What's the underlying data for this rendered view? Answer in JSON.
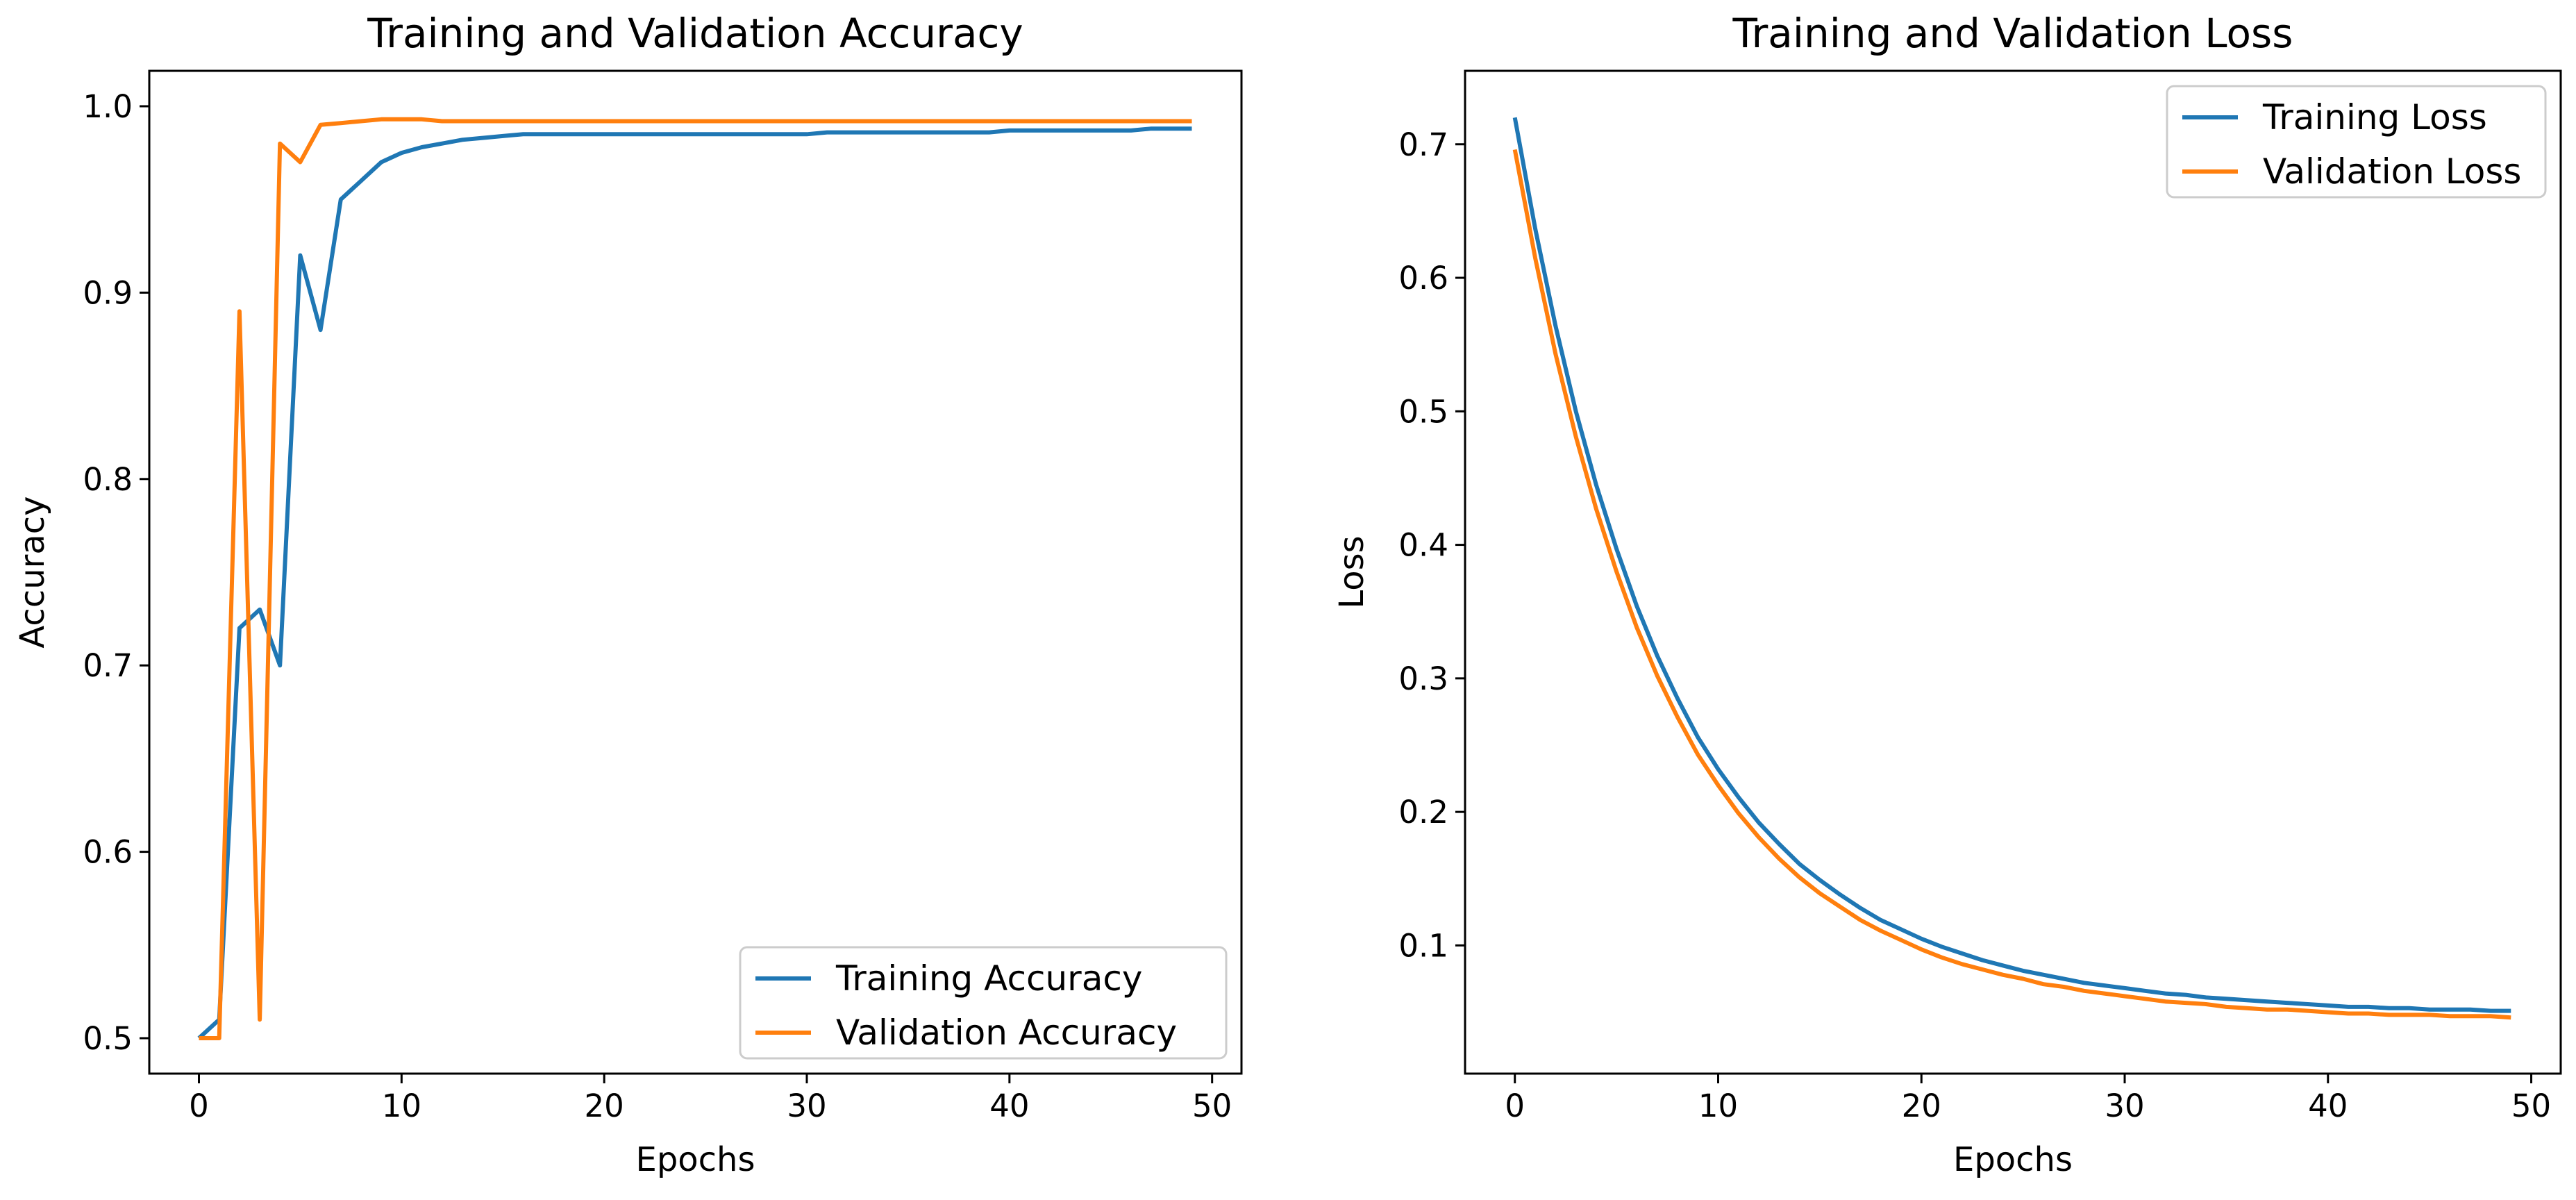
{
  "figure": {
    "colors": {
      "training": "#1f77b4",
      "validation": "#ff7f0e",
      "axes": "#000000",
      "legend_border": "#cccccc"
    }
  },
  "chart_data": [
    {
      "type": "line",
      "title": "Training and Validation Accuracy",
      "xlabel": "Epochs",
      "ylabel": "Accuracy",
      "xlim": [
        -2.45,
        51.45
      ],
      "ylim": [
        0.481,
        1.019
      ],
      "xticks": [
        0,
        10,
        20,
        30,
        40,
        50
      ],
      "xtick_labels": [
        "0",
        "10",
        "20",
        "30",
        "40",
        "50"
      ],
      "yticks": [
        0.5,
        0.6,
        0.7,
        0.8,
        0.9,
        1.0
      ],
      "ytick_labels": [
        "0.5",
        "0.6",
        "0.7",
        "0.8",
        "0.9",
        "1.0"
      ],
      "grid": false,
      "legend_position": "lower-right",
      "x": [
        0,
        1,
        2,
        3,
        4,
        5,
        6,
        7,
        8,
        9,
        10,
        11,
        12,
        13,
        14,
        15,
        16,
        17,
        18,
        19,
        20,
        21,
        22,
        23,
        24,
        25,
        26,
        27,
        28,
        29,
        30,
        31,
        32,
        33,
        34,
        35,
        36,
        37,
        38,
        39,
        40,
        41,
        42,
        43,
        44,
        45,
        46,
        47,
        48,
        49
      ],
      "series": [
        {
          "name": "Training Accuracy",
          "color": "#1f77b4",
          "values": [
            0.5,
            0.51,
            0.72,
            0.73,
            0.7,
            0.92,
            0.88,
            0.95,
            0.96,
            0.97,
            0.975,
            0.978,
            0.98,
            0.982,
            0.983,
            0.984,
            0.985,
            0.985,
            0.985,
            0.985,
            0.985,
            0.985,
            0.985,
            0.985,
            0.985,
            0.985,
            0.985,
            0.985,
            0.985,
            0.985,
            0.985,
            0.986,
            0.986,
            0.986,
            0.986,
            0.986,
            0.986,
            0.986,
            0.986,
            0.986,
            0.987,
            0.987,
            0.987,
            0.987,
            0.987,
            0.987,
            0.987,
            0.988,
            0.988,
            0.988
          ]
        },
        {
          "name": "Validation Accuracy",
          "color": "#ff7f0e",
          "values": [
            0.5,
            0.5,
            0.89,
            0.51,
            0.98,
            0.97,
            0.99,
            0.991,
            0.992,
            0.993,
            0.993,
            0.993,
            0.992,
            0.992,
            0.992,
            0.992,
            0.992,
            0.992,
            0.992,
            0.992,
            0.992,
            0.992,
            0.992,
            0.992,
            0.992,
            0.992,
            0.992,
            0.992,
            0.992,
            0.992,
            0.992,
            0.992,
            0.992,
            0.992,
            0.992,
            0.992,
            0.992,
            0.992,
            0.992,
            0.992,
            0.992,
            0.992,
            0.992,
            0.992,
            0.992,
            0.992,
            0.992,
            0.992,
            0.992,
            0.992
          ]
        }
      ]
    },
    {
      "type": "line",
      "title": "Training and Validation Loss",
      "xlabel": "Epochs",
      "ylabel": "Loss",
      "xlim": [
        -2.45,
        51.45
      ],
      "ylim": [
        0.004,
        0.755
      ],
      "xticks": [
        0,
        10,
        20,
        30,
        40,
        50
      ],
      "xtick_labels": [
        "0",
        "10",
        "20",
        "30",
        "40",
        "50"
      ],
      "yticks": [
        0.1,
        0.2,
        0.3,
        0.4,
        0.5,
        0.6,
        0.7
      ],
      "ytick_labels": [
        "0.1",
        "0.2",
        "0.3",
        "0.4",
        "0.5",
        "0.6",
        "0.7"
      ],
      "grid": false,
      "legend_position": "upper-right",
      "x": [
        0,
        1,
        2,
        3,
        4,
        5,
        6,
        7,
        8,
        9,
        10,
        11,
        12,
        13,
        14,
        15,
        16,
        17,
        18,
        19,
        20,
        21,
        22,
        23,
        24,
        25,
        26,
        27,
        28,
        29,
        30,
        31,
        32,
        33,
        34,
        35,
        36,
        37,
        38,
        39,
        40,
        41,
        42,
        43,
        44,
        45,
        46,
        47,
        48,
        49
      ],
      "series": [
        {
          "name": "Training Loss",
          "color": "#1f77b4",
          "values": [
            0.72,
            0.637,
            0.564,
            0.5,
            0.445,
            0.397,
            0.354,
            0.317,
            0.285,
            0.256,
            0.232,
            0.211,
            0.192,
            0.176,
            0.161,
            0.149,
            0.138,
            0.128,
            0.119,
            0.112,
            0.105,
            0.099,
            0.094,
            0.089,
            0.085,
            0.081,
            0.078,
            0.075,
            0.072,
            0.07,
            0.068,
            0.066,
            0.064,
            0.063,
            0.061,
            0.06,
            0.059,
            0.058,
            0.057,
            0.056,
            0.055,
            0.054,
            0.054,
            0.053,
            0.053,
            0.052,
            0.052,
            0.052,
            0.051,
            0.051
          ]
        },
        {
          "name": "Validation Loss",
          "color": "#ff7f0e",
          "values": [
            0.696,
            0.615,
            0.543,
            0.481,
            0.427,
            0.38,
            0.338,
            0.302,
            0.271,
            0.243,
            0.22,
            0.199,
            0.181,
            0.165,
            0.151,
            0.139,
            0.129,
            0.119,
            0.111,
            0.104,
            0.097,
            0.091,
            0.086,
            0.082,
            0.078,
            0.075,
            0.071,
            0.069,
            0.066,
            0.064,
            0.062,
            0.06,
            0.058,
            0.057,
            0.056,
            0.054,
            0.053,
            0.052,
            0.052,
            0.051,
            0.05,
            0.049,
            0.049,
            0.048,
            0.048,
            0.048,
            0.047,
            0.047,
            0.047,
            0.046
          ]
        }
      ]
    }
  ]
}
